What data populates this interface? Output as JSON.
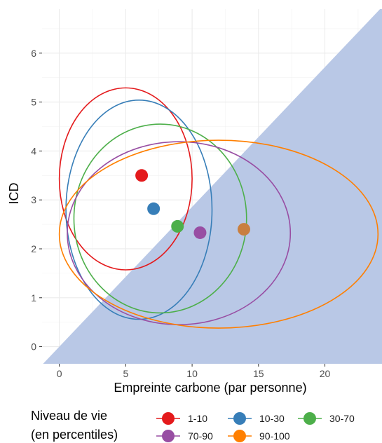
{
  "chart_data": {
    "type": "scatter",
    "xlabel": "Empreinte carbone (par personne)",
    "ylabel": "ICD",
    "xlim": [
      -1.3,
      24.3
    ],
    "ylim": [
      -0.35,
      6.9
    ],
    "x_ticks": [
      0,
      5,
      10,
      15,
      20
    ],
    "y_ticks": [
      0,
      1,
      2,
      3,
      4,
      5,
      6
    ],
    "grid": true,
    "shaded_region": {
      "description": "area below the line y = x / 3.5",
      "color": "#b9c8e6"
    },
    "legend": {
      "title_lines": [
        "Niveau de vie",
        "(en percentiles)"
      ],
      "position": "bottom"
    },
    "series": [
      {
        "name": "1-10",
        "color": "#e41a1c",
        "point": {
          "x": 6.2,
          "y": 3.5
        },
        "ellipse": {
          "cx": 5.0,
          "cy": 3.43,
          "rx": 5.0,
          "ry": 1.86
        }
      },
      {
        "name": "10-30",
        "color": "#377eb8",
        "point": {
          "x": 7.1,
          "y": 2.82
        },
        "ellipse": {
          "cx": 6.0,
          "cy": 2.8,
          "rx": 5.5,
          "ry": 2.24
        }
      },
      {
        "name": "30-70",
        "color": "#4daf4a",
        "point": {
          "x": 8.9,
          "y": 2.46
        },
        "ellipse": {
          "cx": 7.6,
          "cy": 2.62,
          "rx": 6.5,
          "ry": 1.93
        }
      },
      {
        "name": "70-90",
        "color": "#984ea3",
        "point": {
          "x": 10.6,
          "y": 2.33
        },
        "ellipse": {
          "cx": 9.0,
          "cy": 2.32,
          "rx": 8.4,
          "ry": 1.87
        }
      },
      {
        "name": "90-100",
        "color": "#ff7f00",
        "point_color": "#c97f3f",
        "point": {
          "x": 13.9,
          "y": 2.4
        },
        "ellipse": {
          "cx": 12.0,
          "cy": 2.3,
          "rx": 12.0,
          "ry": 1.92
        }
      }
    ]
  }
}
